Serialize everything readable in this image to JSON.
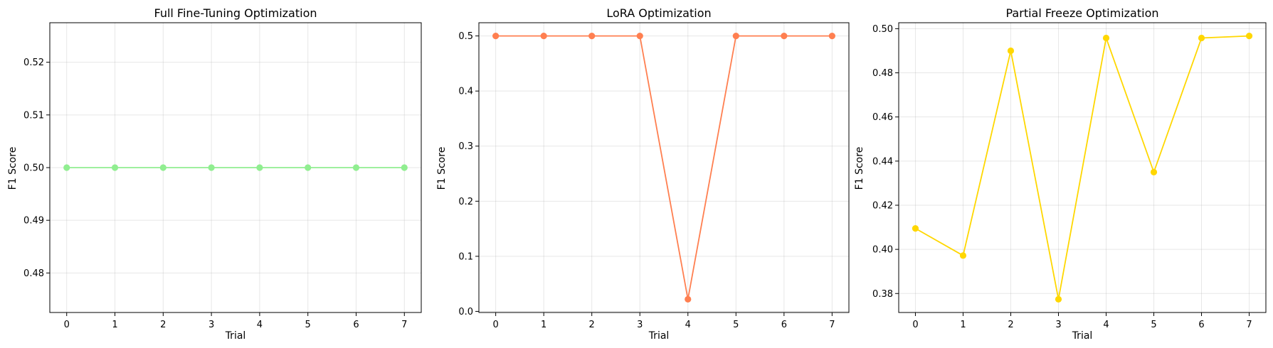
{
  "chart_data": [
    {
      "type": "line",
      "title": "Full Fine-Tuning Optimization",
      "xlabel": "Trial",
      "ylabel": "F1 Score",
      "x": [
        0,
        1,
        2,
        3,
        4,
        5,
        6,
        7
      ],
      "values": [
        0.5,
        0.5,
        0.5,
        0.5,
        0.5,
        0.5,
        0.5,
        0.5
      ],
      "color": "#90ee90",
      "xlim": [
        -0.35,
        7.35
      ],
      "ylim": [
        0.4725,
        0.5275
      ],
      "xticks": [
        "0",
        "1",
        "2",
        "3",
        "4",
        "5",
        "6",
        "7"
      ],
      "yticks": [
        "0.48",
        "0.49",
        "0.50",
        "0.51",
        "0.52"
      ],
      "grid": true
    },
    {
      "type": "line",
      "title": "LoRA Optimization",
      "xlabel": "Trial",
      "ylabel": "F1 Score",
      "x": [
        0,
        1,
        2,
        3,
        4,
        5,
        6,
        7
      ],
      "values": [
        0.5,
        0.5,
        0.5,
        0.5,
        0.022,
        0.5,
        0.5,
        0.5
      ],
      "color": "#ff7f50",
      "xlim": [
        -0.35,
        7.35
      ],
      "ylim": [
        -0.002,
        0.524
      ],
      "xticks": [
        "0",
        "1",
        "2",
        "3",
        "4",
        "5",
        "6",
        "7"
      ],
      "yticks": [
        "0.0",
        "0.1",
        "0.2",
        "0.3",
        "0.4",
        "0.5"
      ],
      "grid": true
    },
    {
      "type": "line",
      "title": "Partial Freeze Optimization",
      "xlabel": "Trial",
      "ylabel": "F1 Score",
      "x": [
        0,
        1,
        2,
        3,
        4,
        5,
        6,
        7
      ],
      "values": [
        0.4095,
        0.3972,
        0.49,
        0.3774,
        0.4958,
        0.435,
        0.4958,
        0.4967
      ],
      "color": "#ffd700",
      "xlim": [
        -0.35,
        7.35
      ],
      "ylim": [
        0.3714,
        0.5027
      ],
      "xticks": [
        "0",
        "1",
        "2",
        "3",
        "4",
        "5",
        "6",
        "7"
      ],
      "yticks": [
        "0.38",
        "0.40",
        "0.42",
        "0.44",
        "0.46",
        "0.48",
        "0.50"
      ],
      "grid": true
    }
  ]
}
